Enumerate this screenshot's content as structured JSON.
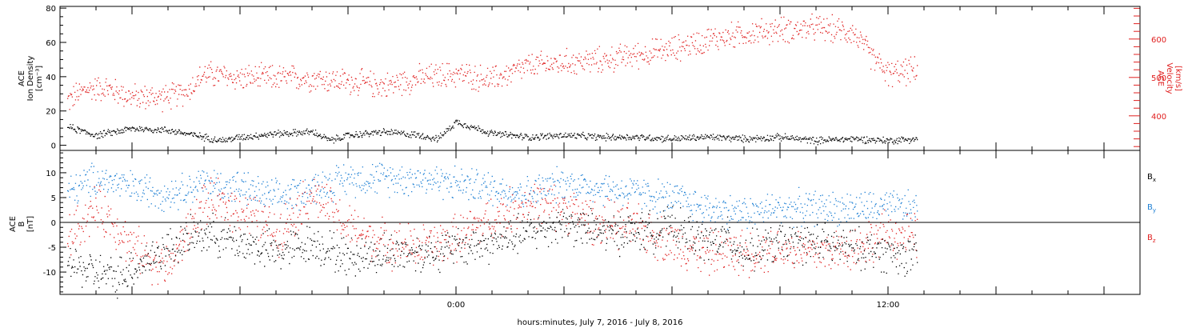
{
  "figure": {
    "xlabel": "hours:minutes,  July  7, 2016 - July  8, 2016",
    "x_tick_labels": [
      "0:00",
      "12:00"
    ]
  },
  "colors": {
    "axis": "#000000",
    "density": "#000000",
    "velocity": "#e02020",
    "bx": "#000000",
    "by": "#1c7fd4",
    "bz": "#e02020"
  },
  "chart_data": [
    {
      "type": "scatter",
      "panel": "plasma",
      "x_unit": "hours since 2016-07-07 0:00",
      "xlim": [
        -11,
        19
      ],
      "ylabel": [
        "ACE",
        "Ion Density",
        "[cm⁻³]"
      ],
      "ylabel_right": [
        "ACE",
        "Velocity",
        "[km/s]"
      ],
      "ylim": [
        -3,
        81
      ],
      "y_ticks": [
        0,
        20,
        40,
        60,
        80
      ],
      "ylim_right": [
        310,
        685
      ],
      "y_ticks_right": [
        400,
        500,
        600
      ],
      "series": [
        {
          "axis": "left",
          "color": "#000000",
          "x": [
            -10.8,
            -10.0,
            -9.0,
            -8.0,
            -7.0,
            -6.5,
            -6.0,
            -5.0,
            -4.0,
            -3.5,
            -3.0,
            -2.0,
            -1.0,
            -0.5,
            0.0,
            1.0,
            2.0,
            3.0,
            4.0,
            5.0,
            6.0,
            7.0,
            8.0,
            9.0,
            10.0,
            11.0,
            12.0,
            12.8
          ],
          "y": [
            11,
            6,
            10,
            9,
            5,
            3,
            5,
            7,
            8,
            3,
            6,
            8,
            6,
            4,
            14,
            7,
            5,
            6,
            5,
            5,
            4,
            5,
            4,
            5,
            3,
            4,
            3,
            4
          ],
          "spread": 1.8
        },
        {
          "axis": "right",
          "color": "#e02020",
          "x": [
            -10.8,
            -10.3,
            -9.8,
            -9.0,
            -8.0,
            -7.5,
            -7.0,
            -6.0,
            -5.0,
            -4.0,
            -3.0,
            -2.0,
            -1.0,
            0.0,
            1.0,
            2.0,
            3.0,
            4.0,
            5.0,
            6.0,
            7.0,
            8.0,
            9.0,
            10.0,
            11.0,
            11.5,
            12.0,
            12.8
          ],
          "y": [
            440,
            470,
            475,
            450,
            450,
            465,
            510,
            500,
            500,
            500,
            490,
            480,
            500,
            510,
            495,
            530,
            540,
            545,
            560,
            575,
            600,
            615,
            625,
            630,
            620,
            560,
            510,
            520
          ],
          "spread": 30
        }
      ]
    },
    {
      "type": "scatter",
      "panel": "magnetic field",
      "x_unit": "hours since 2016-07-07 0:00",
      "xlim": [
        -11,
        19
      ],
      "ylabel": [
        "ACE",
        "B",
        "[nT]"
      ],
      "ylim": [
        -14.5,
        14.5
      ],
      "y_ticks": [
        -10,
        -5,
        0,
        5,
        10
      ],
      "legend": [
        "Bx",
        "By",
        "Bz"
      ],
      "legend_position": "right",
      "series": [
        {
          "name": "Bx",
          "color": "#000000",
          "x": [
            -10.8,
            -10.0,
            -9.5,
            -9.0,
            -8.0,
            -7.0,
            -6.0,
            -5.0,
            -4.0,
            -3.0,
            -2.0,
            -1.0,
            0.0,
            1.0,
            2.0,
            3.0,
            4.0,
            5.0,
            6.0,
            7.0,
            7.5,
            8.0,
            9.0,
            10.0,
            11.0,
            12.0,
            12.8
          ],
          "y": [
            -8,
            -10,
            -11,
            -9,
            -5,
            -2,
            -4,
            -6,
            -4,
            -7,
            -6,
            -6,
            -5,
            -4,
            -2,
            0,
            -2,
            -2,
            -1,
            -4,
            -3,
            -6,
            -4,
            -4,
            -5,
            -6,
            -7
          ],
          "spread": 3.5
        },
        {
          "name": "By",
          "color": "#1c7fd4",
          "x": [
            -10.8,
            -10.0,
            -9.0,
            -8.0,
            -7.0,
            -6.0,
            -5.0,
            -4.0,
            -3.0,
            -2.0,
            -1.0,
            0.0,
            1.0,
            2.0,
            3.0,
            4.0,
            5.0,
            6.0,
            7.0,
            8.0,
            9.0,
            10.0,
            11.0,
            12.0,
            12.8
          ],
          "y": [
            6,
            9,
            7,
            6,
            8,
            7,
            5,
            7,
            9,
            9,
            9,
            8,
            7,
            6,
            8,
            7,
            6,
            5,
            3,
            2,
            3,
            3,
            3,
            3,
            3
          ],
          "spread": 3
        },
        {
          "name": "Bz",
          "color": "#e02020",
          "x": [
            -10.8,
            -10.0,
            -9.5,
            -9.0,
            -8.0,
            -7.0,
            -6.0,
            -5.0,
            -4.0,
            -3.0,
            -2.0,
            -1.0,
            0.0,
            1.0,
            2.0,
            3.0,
            4.0,
            5.0,
            6.0,
            7.0,
            8.0,
            9.0,
            10.0,
            11.0,
            12.0,
            12.8
          ],
          "y": [
            -3,
            3,
            0,
            -5,
            -9,
            4,
            3,
            -2,
            6,
            -1,
            -4,
            -5,
            -3,
            1,
            4,
            3,
            0,
            -1,
            -4,
            -6,
            -6,
            -5,
            -6,
            -5,
            -2,
            -3
          ],
          "spread": 4
        }
      ]
    }
  ]
}
